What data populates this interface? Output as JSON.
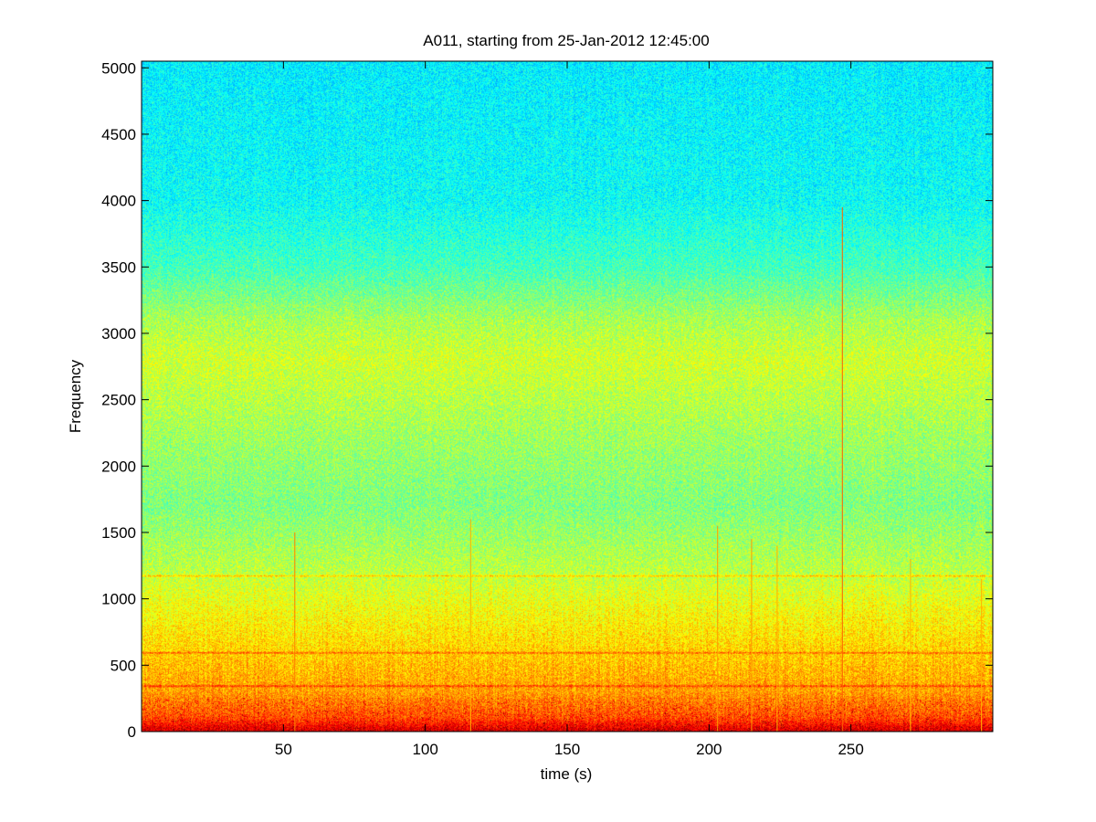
{
  "chart_data": {
    "type": "heatmap",
    "title": "A011, starting from 25-Jan-2012 12:45:00",
    "xlabel": "time (s)",
    "ylabel": "Frequency",
    "xlim": [
      0,
      300
    ],
    "ylim": [
      0,
      5050
    ],
    "x_ticks": [
      50,
      100,
      150,
      200,
      250
    ],
    "y_ticks": [
      0,
      500,
      1000,
      1500,
      2000,
      2500,
      3000,
      3500,
      4000,
      4500,
      5000
    ],
    "colormap": "jet",
    "intensity_profile_by_frequency": [
      {
        "frequency": 0,
        "level": 0.92
      },
      {
        "frequency": 100,
        "level": 0.8
      },
      {
        "frequency": 300,
        "level": 0.72
      },
      {
        "frequency": 600,
        "level": 0.67
      },
      {
        "frequency": 900,
        "level": 0.62
      },
      {
        "frequency": 1200,
        "level": 0.56
      },
      {
        "frequency": 1700,
        "level": 0.5
      },
      {
        "frequency": 2200,
        "level": 0.53
      },
      {
        "frequency": 2800,
        "level": 0.58
      },
      {
        "frequency": 3100,
        "level": 0.54
      },
      {
        "frequency": 3500,
        "level": 0.44
      },
      {
        "frequency": 4000,
        "level": 0.38
      },
      {
        "frequency": 5050,
        "level": 0.36
      }
    ],
    "broadband_transients": [
      {
        "time": 54,
        "top_frequency": 1500,
        "level": 0.75
      },
      {
        "time": 116,
        "top_frequency": 1600,
        "level": 0.7
      },
      {
        "time": 203,
        "top_frequency": 1550,
        "level": 0.72
      },
      {
        "time": 215,
        "top_frequency": 1450,
        "level": 0.72
      },
      {
        "time": 224,
        "top_frequency": 1400,
        "level": 0.7
      },
      {
        "time": 247,
        "top_frequency": 3950,
        "level": 0.78
      },
      {
        "time": 271,
        "top_frequency": 1300,
        "level": 0.7
      },
      {
        "time": 296,
        "top_frequency": 1150,
        "level": 0.7
      }
    ],
    "tonal_bands": [
      {
        "frequency": 340,
        "level": 0.82
      },
      {
        "frequency": 590,
        "level": 0.78
      },
      {
        "frequency": 1170,
        "level": 0.68
      }
    ]
  }
}
